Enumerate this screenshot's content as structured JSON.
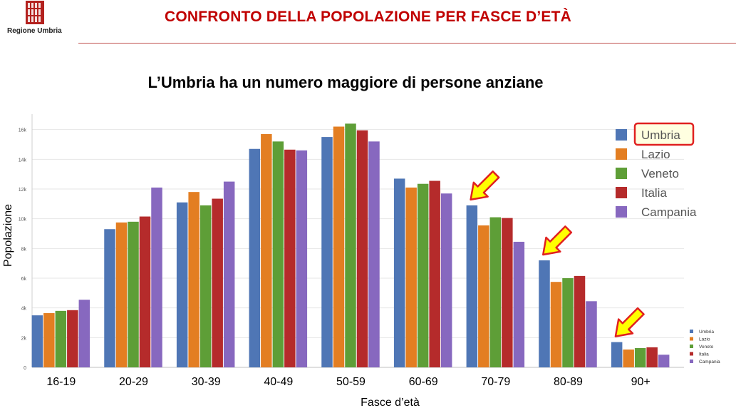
{
  "header": {
    "org_name": "Regione Umbria",
    "slide_title": "CONFRONTO DELLA POPOLAZIONE PER FASCE D’ETÀ"
  },
  "subtitle": "L’Umbria ha un numero maggiore di persone anziane",
  "colors": {
    "title": "#c00000",
    "umbria": "#4f76b5",
    "lazio": "#e37e22",
    "veneto": "#5e9e37",
    "italia": "#b52b2b",
    "campania": "#8768bf",
    "highlight_box": "#e02020",
    "arrow_fill": "#ffff00",
    "arrow_stroke": "#e02020"
  },
  "chart_data": {
    "type": "bar",
    "xlabel": "Fasce d’età",
    "ylabel": "Popolazione",
    "ylim": [
      0,
      16800
    ],
    "yticks": [
      0,
      2000,
      4000,
      6000,
      8000,
      10000,
      12000,
      14000,
      16000
    ],
    "ytick_labels": [
      "0",
      "2k",
      "4k",
      "6k",
      "8k",
      "10k",
      "12k",
      "14k",
      "16k"
    ],
    "grid": true,
    "categories": [
      "16-19",
      "20-29",
      "30-39",
      "40-49",
      "50-59",
      "60-69",
      "70-79",
      "80-89",
      "90+"
    ],
    "series": [
      {
        "name": "Umbria",
        "values": [
          3500,
          9300,
          11100,
          14700,
          15500,
          12700,
          10900,
          7200,
          1700
        ]
      },
      {
        "name": "Lazio",
        "values": [
          3650,
          9750,
          11800,
          15700,
          16200,
          12100,
          9550,
          5750,
          1200
        ]
      },
      {
        "name": "Veneto",
        "values": [
          3800,
          9800,
          10900,
          15200,
          16400,
          12350,
          10100,
          6000,
          1300
        ]
      },
      {
        "name": "Italia",
        "values": [
          3850,
          10150,
          11350,
          14650,
          15950,
          12550,
          10050,
          6150,
          1350
        ]
      },
      {
        "name": "Campania",
        "values": [
          4550,
          12100,
          12500,
          14600,
          15200,
          11700,
          8450,
          4450,
          850
        ]
      }
    ],
    "legend_position": "top-right",
    "highlighted_series": "Umbria",
    "arrows_on_categories": [
      "70-79",
      "80-89",
      "90+"
    ]
  }
}
